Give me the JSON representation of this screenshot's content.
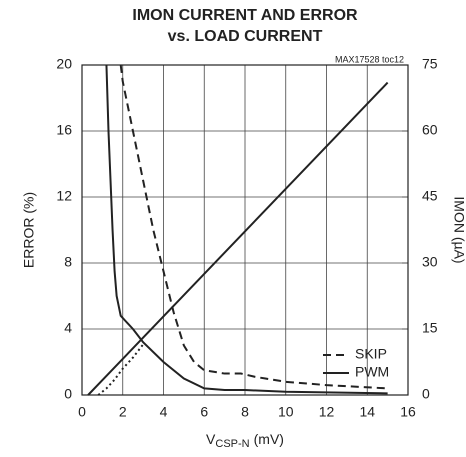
{
  "chart_data": {
    "type": "line",
    "title": [
      "IMON CURRENT AND ERROR",
      "vs. LOAD CURRENT"
    ],
    "annotation": "MAX17528 toc12",
    "x_label": {
      "main": "V",
      "sub": "CSP-N",
      "unit": "(mV)"
    },
    "y_label": "ERROR (%)",
    "y2_label": "IMON (µA)",
    "xlim": [
      0,
      16
    ],
    "xticks": [
      0,
      2,
      4,
      6,
      8,
      10,
      12,
      14,
      16
    ],
    "ylim": [
      0,
      20
    ],
    "yticks": [
      0,
      4,
      8,
      12,
      16,
      20
    ],
    "y2lim": [
      0,
      75
    ],
    "y2ticks": [
      0,
      15,
      30,
      45,
      60,
      75
    ],
    "grid": true,
    "legend": "lower right",
    "series": [
      {
        "name": "SKIP",
        "color": "#222",
        "dash": "dashed",
        "x": [
          1.9,
          2,
          2.5,
          3,
          3.5,
          4,
          4.5,
          5,
          5.5,
          6,
          7,
          7.8,
          8.5,
          9,
          10,
          12,
          15
        ],
        "values": [
          20,
          19,
          16,
          13,
          10,
          7.5,
          5,
          3,
          2,
          1.5,
          1.3,
          1.3,
          1.1,
          1,
          0.8,
          0.6,
          0.4
        ]
      },
      {
        "name": "PWM",
        "color": "#222",
        "dash": "solid",
        "x": [
          1.2,
          1.3,
          1.4,
          1.5,
          1.6,
          1.7,
          1.9,
          2.5,
          3,
          4,
          5,
          6,
          7,
          8,
          10,
          15
        ],
        "values": [
          20,
          16,
          13,
          10,
          7.5,
          6,
          4.8,
          4,
          3.2,
          2,
          1,
          0.4,
          0.3,
          0.3,
          0.2,
          0.1
        ]
      },
      {
        "color": "#222",
        "dash": "dotted",
        "axis": "y2",
        "x": [
          0.8,
          1.2,
          1.6,
          2,
          2.5,
          3
        ],
        "values": [
          0,
          1.5,
          3.5,
          6,
          8.5,
          11.5
        ]
      },
      {
        "color": "#222",
        "dash": "solid",
        "axis": "y2",
        "x": [
          0.3,
          15
        ],
        "values": [
          0,
          71
        ]
      }
    ]
  }
}
